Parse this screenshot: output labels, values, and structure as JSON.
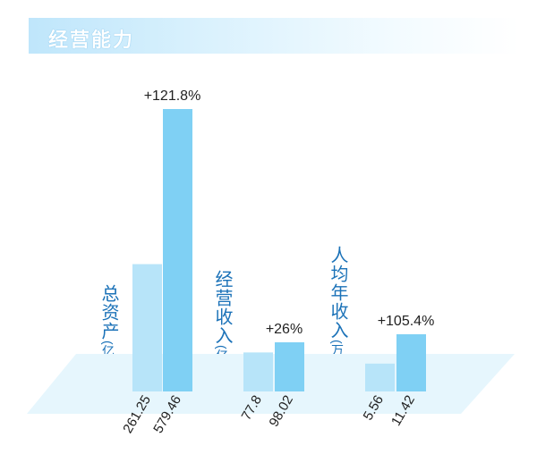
{
  "header": {
    "title": "经营能力"
  },
  "colors": {
    "bar_before": "#b7e4f9",
    "bar_after": "#7fd0f4",
    "floor": "#e6f6fd",
    "label": "#1b72b8",
    "text": "#222222"
  },
  "chart_data": {
    "type": "bar",
    "groups": [
      {
        "label": "总资产",
        "unit": "(亿元)",
        "values": [
          261.25,
          579.46
        ],
        "value_labels": [
          "261.25",
          "579.46"
        ],
        "growth": "+121.8%"
      },
      {
        "label": "经营收入",
        "unit": "(亿元)",
        "values": [
          77.8,
          98.02
        ],
        "value_labels": [
          "77.8",
          "98.02"
        ],
        "growth": "+26%"
      },
      {
        "label": "人均年收入",
        "unit": "(万元)",
        "values": [
          5.56,
          11.42
        ],
        "value_labels": [
          "5.56",
          "11.42"
        ],
        "growth": "+105.4%"
      }
    ],
    "legend": "none"
  }
}
